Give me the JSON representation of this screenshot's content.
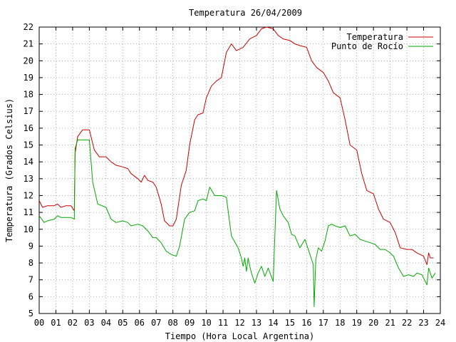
{
  "chart_data": {
    "type": "line",
    "title": "Temperatura 26/04/2009",
    "xlabel": "Tiempo (Hora Local Argentina)",
    "ylabel": "Temperatura (Grados Celsius)",
    "xlim": [
      0,
      24
    ],
    "ylim": [
      5,
      22
    ],
    "x_tick_labels": [
      "00",
      "01",
      "02",
      "03",
      "04",
      "05",
      "06",
      "07",
      "08",
      "09",
      "10",
      "11",
      "12",
      "13",
      "14",
      "15",
      "16",
      "17",
      "18",
      "19",
      "20",
      "21",
      "22",
      "23",
      "24"
    ],
    "y_tick_labels": [
      "5",
      "6",
      "7",
      "8",
      "9",
      "10",
      "11",
      "12",
      "13",
      "14",
      "15",
      "16",
      "17",
      "18",
      "19",
      "20",
      "21",
      "22"
    ],
    "grid": true,
    "legend_position": "top-right",
    "series": [
      {
        "name": "Temperatura",
        "color": "#cc0000",
        "x": [
          0,
          0.2,
          0.5,
          0.9,
          1.1,
          1.3,
          1.6,
          1.9,
          2.1,
          2.15,
          2.3,
          2.6,
          3.0,
          3.3,
          3.6,
          4.0,
          4.3,
          4.6,
          5.0,
          5.3,
          5.5,
          5.9,
          6.1,
          6.3,
          6.5,
          6.8,
          7.0,
          7.3,
          7.5,
          7.8,
          8.0,
          8.2,
          8.5,
          8.8,
          9.0,
          9.3,
          9.5,
          9.8,
          10.0,
          10.3,
          10.6,
          10.9,
          11.2,
          11.5,
          11.8,
          12.2,
          12.6,
          13.0,
          13.3,
          13.6,
          14.0,
          14.3,
          14.6,
          15.0,
          15.3,
          15.6,
          16.0,
          16.3,
          16.6,
          17.0,
          17.3,
          17.6,
          18.0,
          18.3,
          18.6,
          19.0,
          19.3,
          19.6,
          20.0,
          20.3,
          20.6,
          21.0,
          21.3,
          21.6,
          22.0,
          22.3,
          22.6,
          23.0,
          23.2,
          23.3,
          23.4,
          23.6
        ],
        "values": [
          11.7,
          11.3,
          11.4,
          11.4,
          11.5,
          11.3,
          11.4,
          11.4,
          11.1,
          14.5,
          15.5,
          15.9,
          15.9,
          14.7,
          14.3,
          14.3,
          14.0,
          13.8,
          13.7,
          13.6,
          13.3,
          13.0,
          12.8,
          13.2,
          12.9,
          12.8,
          12.5,
          11.5,
          10.5,
          10.2,
          10.2,
          10.6,
          12.6,
          13.5,
          15.0,
          16.5,
          16.8,
          16.9,
          17.8,
          18.5,
          18.8,
          19.0,
          20.5,
          21.0,
          20.6,
          20.8,
          21.3,
          21.5,
          21.9,
          22.0,
          21.9,
          21.5,
          21.3,
          21.2,
          21.0,
          20.9,
          20.8,
          20.0,
          19.6,
          19.3,
          18.8,
          18.1,
          17.8,
          16.5,
          15.0,
          14.7,
          13.3,
          12.3,
          12.1,
          11.2,
          10.6,
          10.4,
          9.8,
          8.9,
          8.8,
          8.8,
          8.6,
          8.4,
          7.9,
          8.6,
          8.3,
          8.3
        ]
      },
      {
        "name": "Punto de Rocío",
        "color": "#00aa00",
        "x": [
          0,
          0.3,
          0.5,
          0.9,
          1.1,
          1.3,
          1.6,
          1.9,
          2.1,
          2.15,
          2.3,
          2.6,
          3.0,
          3.2,
          3.5,
          4.0,
          4.3,
          4.6,
          5.0,
          5.3,
          5.5,
          5.9,
          6.2,
          6.5,
          6.8,
          7.0,
          7.3,
          7.6,
          7.9,
          8.2,
          8.4,
          8.7,
          9.0,
          9.3,
          9.5,
          9.8,
          10.0,
          10.2,
          10.5,
          10.6,
          10.9,
          11.2,
          11.5,
          11.9,
          12.1,
          12.2,
          12.3,
          12.4,
          12.5,
          12.6,
          12.7,
          12.9,
          13.1,
          13.3,
          13.5,
          13.7,
          14.0,
          14.2,
          14.4,
          14.6,
          14.9,
          15.1,
          15.3,
          15.6,
          15.9,
          16.2,
          16.4,
          16.45,
          16.55,
          16.7,
          16.9,
          17.1,
          17.3,
          17.5,
          17.7,
          18.0,
          18.3,
          18.6,
          18.9,
          19.2,
          19.5,
          19.8,
          20.1,
          20.4,
          20.7,
          21.0,
          21.2,
          21.5,
          21.8,
          22.1,
          22.4,
          22.6,
          22.9,
          23.2,
          23.3,
          23.5,
          23.7
        ],
        "values": [
          10.8,
          10.4,
          10.5,
          10.6,
          10.8,
          10.7,
          10.7,
          10.7,
          10.6,
          14.8,
          15.3,
          15.3,
          15.3,
          12.8,
          11.5,
          11.3,
          10.6,
          10.4,
          10.5,
          10.4,
          10.2,
          10.3,
          10.2,
          9.9,
          9.5,
          9.5,
          9.2,
          8.7,
          8.5,
          8.4,
          9.0,
          10.6,
          11.0,
          11.1,
          11.7,
          11.8,
          11.7,
          12.5,
          12.0,
          12.0,
          12.0,
          11.9,
          9.6,
          8.9,
          8.3,
          7.8,
          8.3,
          7.5,
          8.3,
          7.8,
          7.4,
          6.8,
          7.4,
          7.8,
          7.2,
          7.7,
          6.9,
          12.3,
          11.2,
          10.8,
          10.4,
          9.7,
          9.6,
          8.9,
          9.4,
          8.5,
          7.9,
          5.4,
          8.2,
          8.9,
          8.7,
          9.3,
          10.2,
          10.3,
          10.2,
          10.1,
          10.2,
          9.6,
          9.7,
          9.4,
          9.3,
          9.2,
          9.1,
          8.8,
          8.8,
          8.6,
          8.4,
          7.7,
          7.2,
          7.3,
          7.2,
          7.4,
          7.3,
          6.7,
          7.7,
          7.1,
          7.4
        ]
      }
    ]
  }
}
